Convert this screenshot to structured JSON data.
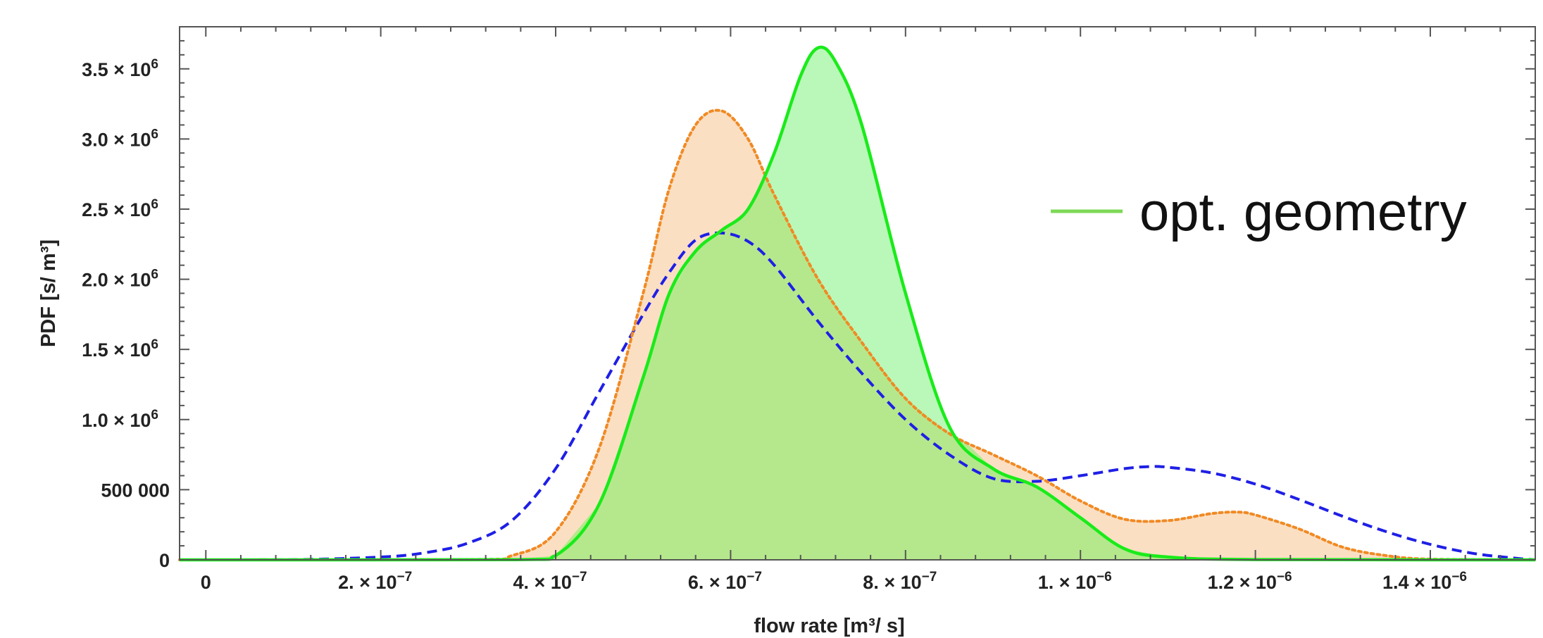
{
  "chart_data": {
    "type": "area",
    "title": "",
    "xlabel": "flow rate [m³/ s]",
    "ylabel": "PDF [s/ m³]",
    "xlim": [
      -3e-08,
      1.52e-06
    ],
    "ylim": [
      0,
      3800000.0
    ],
    "grid": false,
    "legend_position": "top-right",
    "x_ticks": [
      {
        "value": 0,
        "label": "0"
      },
      {
        "value": 2e-07,
        "label": "2. × 10",
        "exp": "−7"
      },
      {
        "value": 4e-07,
        "label": "4. × 10",
        "exp": "−7"
      },
      {
        "value": 6e-07,
        "label": "6. × 10",
        "exp": "−7"
      },
      {
        "value": 8e-07,
        "label": "8. × 10",
        "exp": "−7"
      },
      {
        "value": 1e-06,
        "label": "1. × 10",
        "exp": "−6"
      },
      {
        "value": 1.2e-06,
        "label": "1.2 × 10",
        "exp": "−6"
      },
      {
        "value": 1.4e-06,
        "label": "1.4 × 10",
        "exp": "−6"
      }
    ],
    "y_ticks": [
      {
        "value": 0,
        "label": "0",
        "exp": ""
      },
      {
        "value": 500000,
        "label": "500 000",
        "exp": ""
      },
      {
        "value": 1000000,
        "label": "1.0 × 10",
        "exp": "6"
      },
      {
        "value": 1500000,
        "label": "1.5 × 10",
        "exp": "6"
      },
      {
        "value": 2000000,
        "label": "2.0 × 10",
        "exp": "6"
      },
      {
        "value": 2500000,
        "label": "2.5 × 10",
        "exp": "6"
      },
      {
        "value": 3000000,
        "label": "3.0 × 10",
        "exp": "6"
      },
      {
        "value": 3500000,
        "label": "3.5 × 10",
        "exp": "6"
      }
    ],
    "series": [
      {
        "key": "dashed",
        "line_color": "#1f1fe6",
        "fill_color": "",
        "style": "dashed",
        "x": [
          -3e-08,
          0,
          1e-07,
          2e-07,
          2.5e-07,
          3e-07,
          3.5e-07,
          4e-07,
          4.5e-07,
          5e-07,
          5.3e-07,
          5.6e-07,
          5.9e-07,
          6.2e-07,
          6.5e-07,
          7e-07,
          7.5e-07,
          8e-07,
          8.5e-07,
          9e-07,
          9.5e-07,
          1e-06,
          1.05e-06,
          1.08e-06,
          1.1e-06,
          1.15e-06,
          1.2e-06,
          1.25e-06,
          1.3e-06,
          1.35e-06,
          1.4e-06,
          1.45e-06,
          1.5e-06,
          1.52e-06
        ],
        "y": [
          0,
          0,
          1000,
          20000,
          50000,
          120000,
          280000,
          650000,
          1200000,
          1750000,
          2050000,
          2280000,
          2330000,
          2270000,
          2100000,
          1700000,
          1330000,
          1000000,
          750000,
          580000,
          560000,
          600000,
          650000,
          665000,
          660000,
          620000,
          540000,
          430000,
          310000,
          200000,
          110000,
          45000,
          10000,
          0
        ]
      },
      {
        "key": "dotted",
        "line_color": "#f08a24",
        "fill_color": "#fad9b8",
        "style": "dotted",
        "x": [
          -3e-08,
          3e-07,
          3.5e-07,
          4e-07,
          4.5e-07,
          5e-07,
          5.3e-07,
          5.6e-07,
          5.9e-07,
          6.2e-07,
          6.5e-07,
          7e-07,
          7.5e-07,
          8e-07,
          8.5e-07,
          9e-07,
          9.5e-07,
          1e-06,
          1.05e-06,
          1.1e-06,
          1.15e-06,
          1.18e-06,
          1.2e-06,
          1.25e-06,
          1.3e-06,
          1.35e-06,
          1.4e-06,
          1.52e-06
        ],
        "y": [
          0,
          2000,
          30000,
          200000,
          800000,
          1900000,
          2650000,
          3100000,
          3200000,
          3000000,
          2600000,
          2000000,
          1550000,
          1150000,
          900000,
          750000,
          600000,
          420000,
          290000,
          280000,
          330000,
          340000,
          320000,
          220000,
          90000,
          30000,
          5000,
          0
        ]
      },
      {
        "key": "solid",
        "name": "opt. geometry",
        "line_color": "#1aeb1a",
        "fill_color": "#b2f7b2",
        "style": "solid",
        "x": [
          -3e-08,
          3.5e-07,
          4e-07,
          4.5e-07,
          5e-07,
          5.3e-07,
          5.6e-07,
          5.9e-07,
          6.2e-07,
          6.5e-07,
          6.8e-07,
          7e-07,
          7.2e-07,
          7.5e-07,
          8e-07,
          8.5e-07,
          9e-07,
          9.5e-07,
          1e-06,
          1.05e-06,
          1.1e-06,
          1.2e-06,
          1.52e-06
        ],
        "y": [
          0,
          1000,
          30000,
          400000,
          1300000,
          1900000,
          2200000,
          2350000,
          2500000,
          2900000,
          3450000,
          3650000,
          3550000,
          3100000,
          1900000,
          950000,
          650000,
          520000,
          300000,
          80000,
          20000,
          2000,
          0
        ]
      }
    ]
  }
}
